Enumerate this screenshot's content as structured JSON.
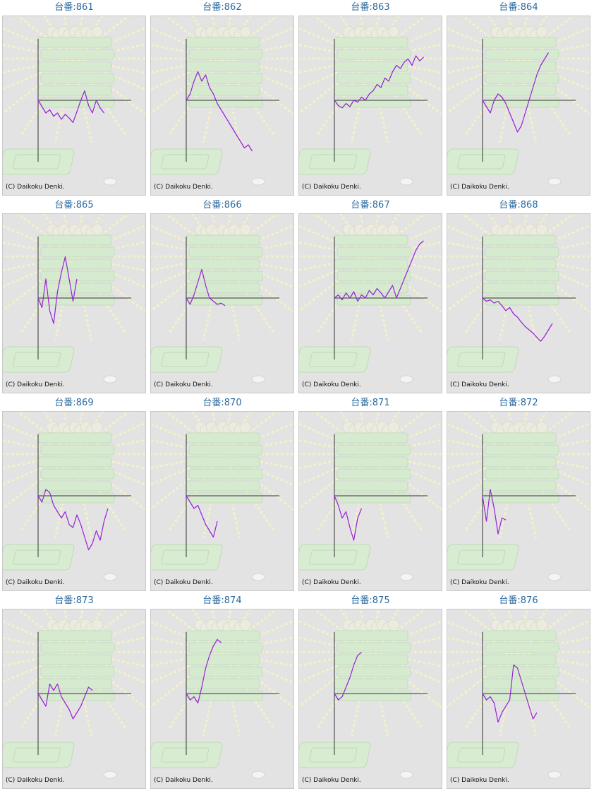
{
  "copyright": "(C) Daikoku Denki.",
  "colors": {
    "title": "#2a6aa0",
    "line": "#9a1fd8",
    "axis": "#333333",
    "panel_bg": "#e3e3e3"
  },
  "machines": [
    {
      "title": "台番:861",
      "series": [
        0,
        -10,
        -20,
        -15,
        -25,
        -20,
        -30,
        -22,
        -28,
        -35,
        -18,
        0,
        15,
        -8,
        -20,
        0,
        -12,
        -20
      ]
    },
    {
      "title": "台番:862",
      "series": [
        0,
        10,
        30,
        45,
        30,
        40,
        20,
        10,
        -5,
        -15,
        -25,
        -35,
        -45,
        -55,
        -65,
        -75,
        -70,
        -80
      ]
    },
    {
      "title": "台番:863",
      "series": [
        0,
        -8,
        -12,
        -5,
        -10,
        0,
        -3,
        5,
        0,
        10,
        15,
        25,
        20,
        35,
        30,
        45,
        55,
        50,
        60,
        65,
        55,
        70,
        62,
        68
      ]
    },
    {
      "title": "台番:864",
      "series": [
        0,
        -10,
        -20,
        0,
        10,
        5,
        -5,
        -20,
        -35,
        -50,
        -40,
        -20,
        0,
        20,
        40,
        55,
        65,
        75
      ]
    },
    {
      "title": "台番:865",
      "series": [
        0,
        -15,
        30,
        -20,
        -40,
        10,
        40,
        65,
        30,
        -5,
        30
      ]
    },
    {
      "title": "台番:866",
      "series": [
        0,
        -10,
        5,
        25,
        45,
        20,
        0,
        -5,
        -10,
        -8,
        -12
      ]
    },
    {
      "title": "台番:867",
      "series": [
        0,
        5,
        -3,
        8,
        0,
        10,
        -5,
        5,
        0,
        12,
        5,
        15,
        8,
        0,
        10,
        20,
        0,
        15,
        30,
        45,
        60,
        75,
        85,
        90
      ]
    },
    {
      "title": "台番:868",
      "series": [
        0,
        -5,
        -3,
        -8,
        -5,
        -12,
        -20,
        -15,
        -25,
        -30,
        -38,
        -45,
        -50,
        -55,
        -62,
        -68,
        -60,
        -50,
        -40
      ]
    },
    {
      "title": "台番:869",
      "series": [
        0,
        -10,
        10,
        5,
        -15,
        -25,
        -35,
        -25,
        -45,
        -50,
        -30,
        -45,
        -65,
        -85,
        -75,
        -55,
        -70,
        -40,
        -20
      ]
    },
    {
      "title": "台番:870",
      "series": [
        0,
        -10,
        -20,
        -15,
        -30,
        -45,
        -55,
        -65,
        -40
      ]
    },
    {
      "title": "台番:871",
      "series": [
        0,
        -15,
        -35,
        -25,
        -50,
        -70,
        -35,
        -20
      ]
    },
    {
      "title": "台番:872",
      "series": [
        0,
        -40,
        10,
        -20,
        -60,
        -35,
        -38
      ]
    },
    {
      "title": "台番:873",
      "series": [
        0,
        -10,
        -20,
        15,
        5,
        15,
        -5,
        -15,
        -25,
        -40,
        -30,
        -20,
        -5,
        10,
        5
      ]
    },
    {
      "title": "台番:874",
      "series": [
        0,
        -10,
        -5,
        -15,
        10,
        40,
        60,
        75,
        85,
        80
      ]
    },
    {
      "title": "台番:875",
      "series": [
        0,
        -10,
        -5,
        10,
        25,
        45,
        60,
        65
      ]
    },
    {
      "title": "台番:876",
      "series": [
        0,
        -10,
        -5,
        -15,
        -45,
        -30,
        -20,
        -10,
        45,
        40,
        20,
        0,
        -20,
        -40,
        -30
      ]
    }
  ]
}
